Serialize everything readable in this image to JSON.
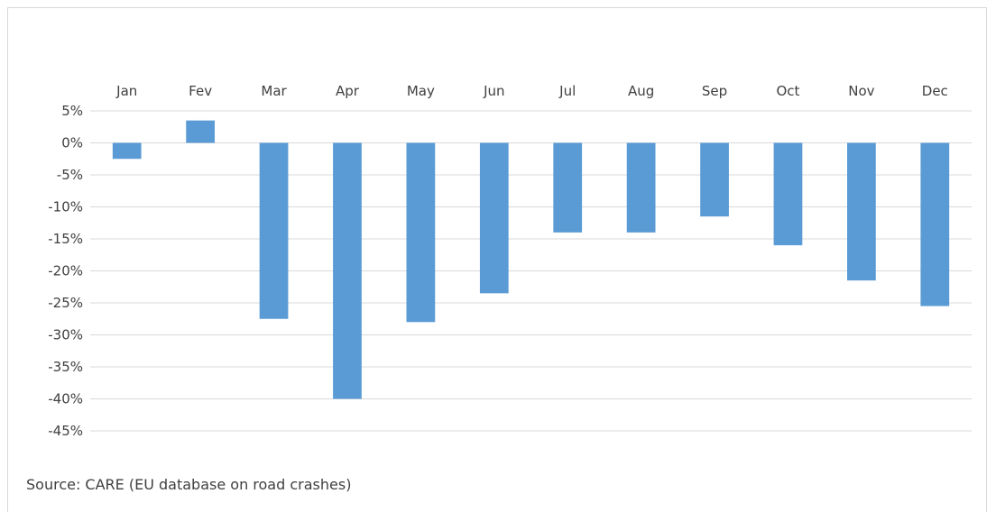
{
  "chart_data": {
    "type": "bar",
    "categories": [
      "Jan",
      "Fev",
      "Mar",
      "Apr",
      "May",
      "Jun",
      "Jul",
      "Aug",
      "Sep",
      "Oct",
      "Nov",
      "Dec"
    ],
    "values": [
      -2.5,
      3.5,
      -27.5,
      -40,
      -28,
      -23.5,
      -14,
      -14,
      -11.5,
      -16,
      -21.5,
      -25.5
    ],
    "value_unit": "percent",
    "title": "",
    "xlabel": "",
    "ylabel": "",
    "ylim": [
      -45,
      5
    ],
    "yticks": [
      "5%",
      "0%",
      "-5%",
      "-10%",
      "-15%",
      "-20%",
      "-25%",
      "-30%",
      "-35%",
      "-40%",
      "-45%"
    ],
    "x_axis_position": "top",
    "grid": true,
    "legend": "none",
    "bar_color": "#5b9bd5",
    "grid_color": "#d9d9d9"
  },
  "source": "Source: CARE (EU database on road crashes)"
}
